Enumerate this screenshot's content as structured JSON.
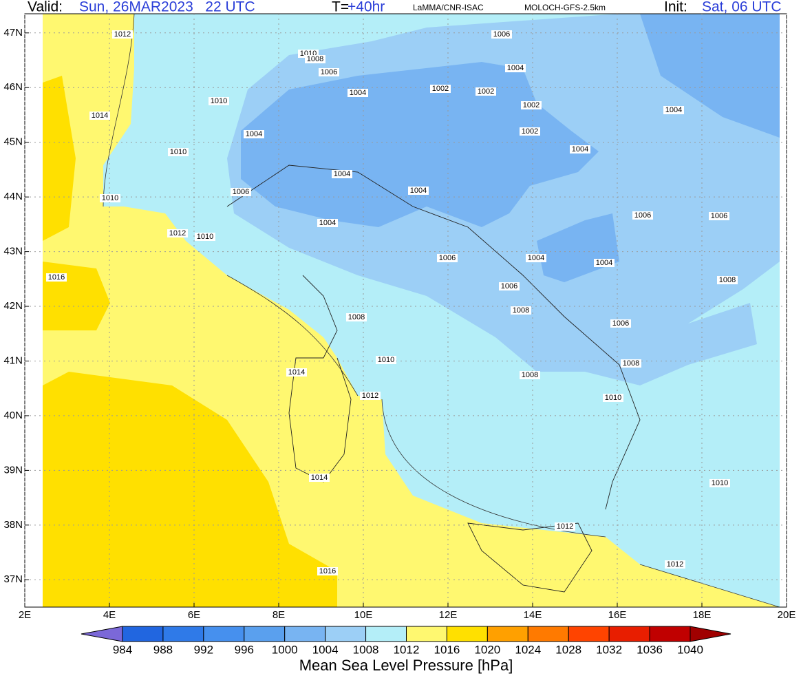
{
  "map": {
    "header": {
      "valid_label": "Valid:",
      "valid_time": "Sun, 26MAR2023   22 UTC",
      "step_label": "T=",
      "step": "+40hr",
      "institution": "LaMMA/CNR-ISAC",
      "model": "MOLOCH-GFS-2.5km",
      "init_label": "Init:",
      "init_time": "Sat, 06 UTC"
    },
    "xlim": [
      2,
      20
    ],
    "ylim": [
      36.5,
      47.35
    ],
    "xticks": [
      {
        "value": 2,
        "label": "2E"
      },
      {
        "value": 4,
        "label": "4E"
      },
      {
        "value": 6,
        "label": "6E"
      },
      {
        "value": 8,
        "label": "8E"
      },
      {
        "value": 10,
        "label": "10E"
      },
      {
        "value": 12,
        "label": "12E"
      },
      {
        "value": 14,
        "label": "14E"
      },
      {
        "value": 16,
        "label": "16E"
      },
      {
        "value": 18,
        "label": "18E"
      },
      {
        "value": 20,
        "label": "20E"
      }
    ],
    "yticks": [
      {
        "value": 37,
        "label": "37N"
      },
      {
        "value": 38,
        "label": "38N"
      },
      {
        "value": 39,
        "label": "39N"
      },
      {
        "value": 40,
        "label": "40N"
      },
      {
        "value": 41,
        "label": "41N"
      },
      {
        "value": 42,
        "label": "42N"
      },
      {
        "value": 43,
        "label": "43N"
      },
      {
        "value": 44,
        "label": "44N"
      },
      {
        "value": 45,
        "label": "45N"
      },
      {
        "value": 46,
        "label": "46N"
      },
      {
        "value": 47,
        "label": "47N"
      }
    ],
    "grid": true,
    "contour_labels": [
      1012,
      1010,
      1008,
      1006,
      1006,
      1004,
      1004,
      1002,
      1002,
      1002,
      1010,
      1014,
      1004,
      1004,
      1002,
      1010,
      1004,
      1004,
      1006,
      1004,
      1010,
      1004,
      1006,
      1006,
      1012,
      1010,
      1006,
      1004,
      1004,
      1016,
      1008,
      1006,
      1008,
      1008,
      1006,
      1010,
      1008,
      1014,
      1008,
      1012,
      1010,
      1014,
      1010,
      1012,
      1012,
      1016
    ],
    "colorbar": {
      "levels": [
        984,
        988,
        992,
        996,
        1000,
        1004,
        1008,
        1012,
        1016,
        1020,
        1024,
        1028,
        1032,
        1036,
        1040
      ],
      "colors": [
        "#7b68d8",
        "#2166e0",
        "#2f7ae8",
        "#4690ee",
        "#5aa0ee",
        "#78b4f2",
        "#9ccff6",
        "#b4eef8",
        "#fff870",
        "#ffe000",
        "#ffa000",
        "#ff7a00",
        "#ff4400",
        "#e81e00",
        "#c00000",
        "#a00000"
      ],
      "title": "Mean Sea Level Pressure [hPa]"
    }
  }
}
